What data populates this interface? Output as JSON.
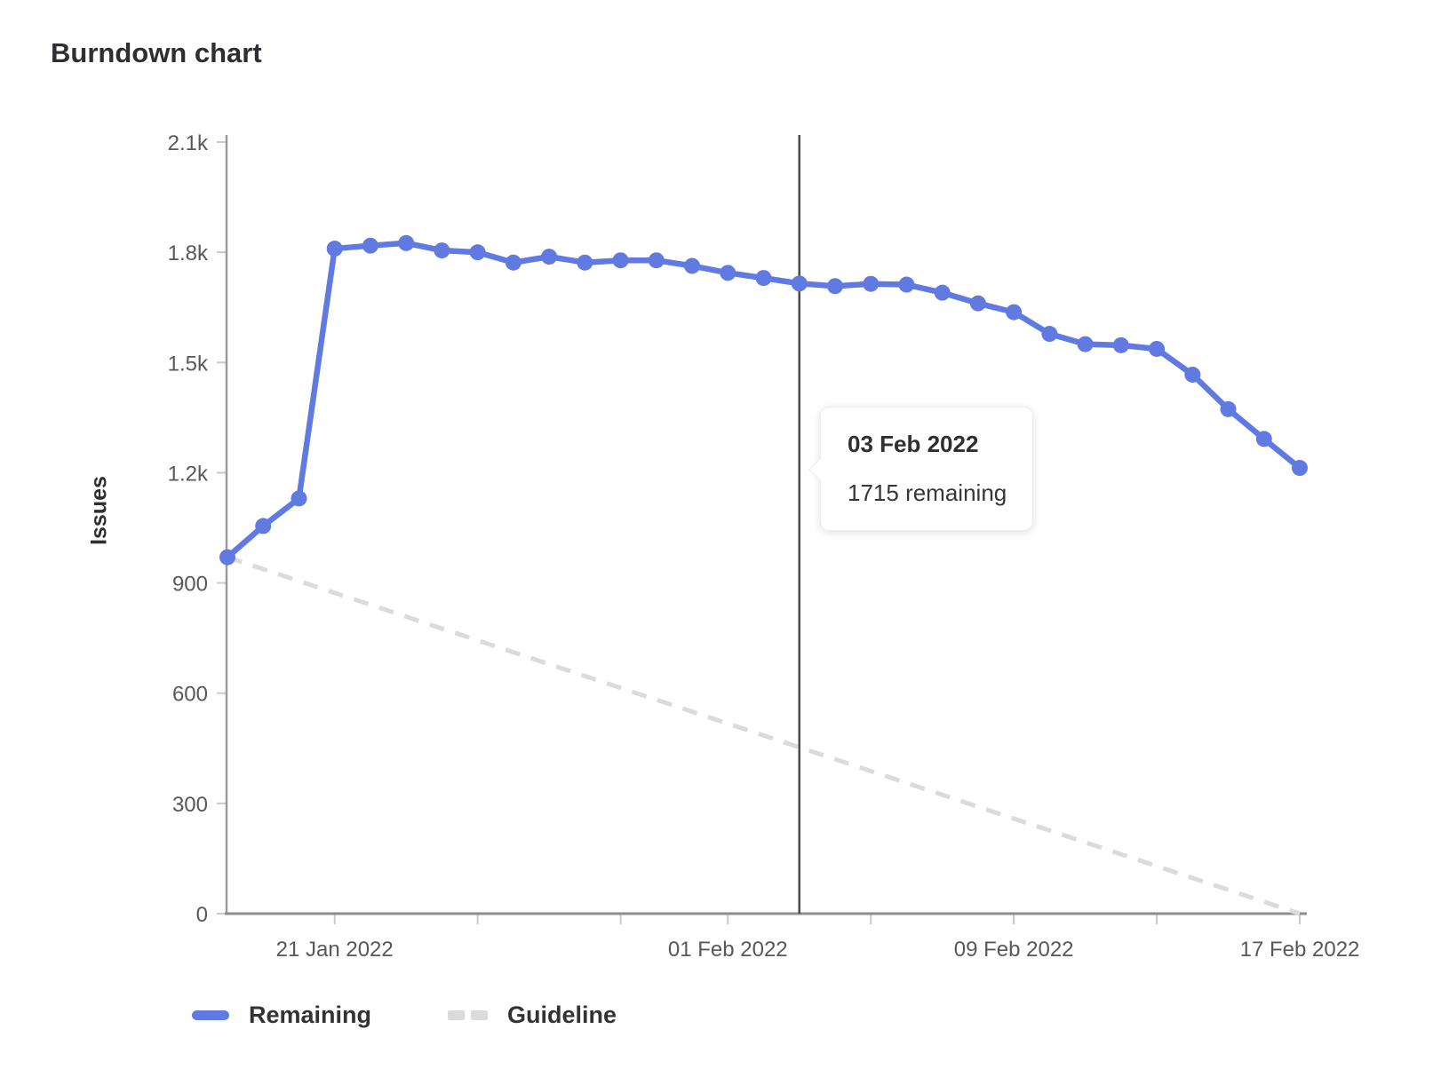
{
  "chart_data": {
    "type": "line",
    "title": "Burndown chart",
    "xlabel": "",
    "ylabel": "Issues",
    "ylim": [
      0,
      2100
    ],
    "grid": false,
    "legend_position": "bottom-left",
    "x": [
      "18 Jan 2022",
      "19 Jan 2022",
      "20 Jan 2022",
      "21 Jan 2022",
      "22 Jan 2022",
      "23 Jan 2022",
      "24 Jan 2022",
      "25 Jan 2022",
      "26 Jan 2022",
      "27 Jan 2022",
      "28 Jan 2022",
      "29 Jan 2022",
      "30 Jan 2022",
      "31 Jan 2022",
      "01 Feb 2022",
      "02 Feb 2022",
      "03 Feb 2022",
      "04 Feb 2022",
      "05 Feb 2022",
      "06 Feb 2022",
      "07 Feb 2022",
      "08 Feb 2022",
      "09 Feb 2022",
      "10 Feb 2022",
      "11 Feb 2022",
      "12 Feb 2022",
      "13 Feb 2022",
      "14 Feb 2022",
      "15 Feb 2022",
      "16 Feb 2022",
      "17 Feb 2022"
    ],
    "series": [
      {
        "name": "Remaining",
        "style": "solid",
        "color": "#617ae2",
        "values": [
          970,
          1055,
          1130,
          1810,
          1818,
          1825,
          1805,
          1800,
          1772,
          1788,
          1772,
          1778,
          1778,
          1763,
          1744,
          1730,
          1715,
          1708,
          1714,
          1712,
          1690,
          1661,
          1637,
          1578,
          1550,
          1547,
          1537,
          1467,
          1373,
          1292,
          1213
        ]
      },
      {
        "name": "Guideline",
        "style": "dashed",
        "color": "#dbdbdb",
        "points": [
          [
            "18 Jan 2022",
            970
          ],
          [
            "17 Feb 2022",
            0
          ]
        ]
      }
    ],
    "y_ticks": [
      {
        "value": 0,
        "label": "0"
      },
      {
        "value": 300,
        "label": "300"
      },
      {
        "value": 600,
        "label": "600"
      },
      {
        "value": 900,
        "label": "900"
      },
      {
        "value": 1200,
        "label": "1.2k"
      },
      {
        "value": 1500,
        "label": "1.5k"
      },
      {
        "value": 1800,
        "label": "1.8k"
      },
      {
        "value": 2100,
        "label": "2.1k"
      }
    ],
    "x_ticks": [
      {
        "date": "21 Jan 2022",
        "label": "21 Jan 2022"
      },
      {
        "date": "25 Jan 2022",
        "label": ""
      },
      {
        "date": "29 Jan 2022",
        "label": ""
      },
      {
        "date": "01 Feb 2022",
        "label": "01 Feb 2022"
      },
      {
        "date": "05 Feb 2022",
        "label": ""
      },
      {
        "date": "09 Feb 2022",
        "label": ""
      },
      {
        "date": "09 Feb 2022 ",
        "label": "09 Feb 2022"
      },
      {
        "date": "13 Feb 2022",
        "label": ""
      },
      {
        "date": "17 Feb 2022",
        "label": "17 Feb 2022"
      }
    ],
    "today_marker": {
      "date": "03 Feb 2022",
      "color": "#4b4b4b"
    },
    "axis_color": "#9a9a9a",
    "tick_color": "#c9c9c9"
  },
  "tooltip": {
    "title": "03 Feb 2022",
    "body": "1715 remaining"
  }
}
